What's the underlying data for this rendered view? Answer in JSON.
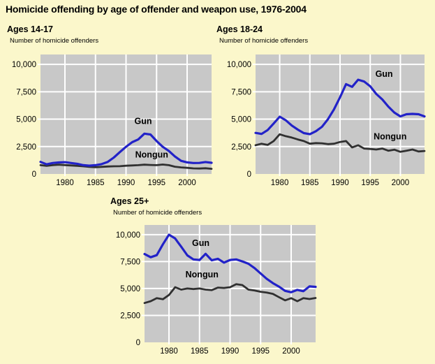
{
  "page": {
    "title": "Homicide offending by age of offender and weapon use, 1976-2004",
    "background": "#FBF7CB"
  },
  "colors": {
    "gun": "#2222C8",
    "nongun": "#303030",
    "panel": "#C8C8C8",
    "grid": "#FFFFFF",
    "text": "#000000"
  },
  "chart_data": [
    {
      "type": "line",
      "title": "Ages 14-17",
      "ylabel": "Number of homicide offenders",
      "xlim": [
        1976,
        2004
      ],
      "ylim": [
        0,
        10900
      ],
      "grid": true,
      "legend": "inline-labels",
      "x": [
        1976,
        1977,
        1978,
        1979,
        1980,
        1981,
        1982,
        1983,
        1984,
        1985,
        1986,
        1987,
        1988,
        1989,
        1990,
        1991,
        1992,
        1993,
        1994,
        1995,
        1996,
        1997,
        1998,
        1999,
        2000,
        2001,
        2002,
        2003,
        2004
      ],
      "xticks": {
        "values": [
          1980,
          1985,
          1990,
          1995,
          2000
        ],
        "labels": [
          "1980",
          "1985",
          "1990",
          "1995",
          "2000"
        ]
      },
      "yticks": {
        "values": [
          0,
          2500,
          5000,
          7500,
          10000
        ],
        "labels": [
          "0",
          "2,500",
          "5,000",
          "7,500",
          "10,000"
        ]
      },
      "series": [
        {
          "name": "Nongun",
          "color_key": "nongun",
          "values": [
            800,
            740,
            800,
            850,
            810,
            780,
            740,
            700,
            650,
            610,
            650,
            680,
            700,
            710,
            750,
            780,
            800,
            850,
            820,
            800,
            860,
            800,
            660,
            600,
            560,
            510,
            500,
            520,
            470
          ],
          "label": {
            "x": 1994.2,
            "y": 1500
          }
        },
        {
          "name": "Gun",
          "color_key": "gun",
          "values": [
            1100,
            880,
            1000,
            1050,
            1080,
            1000,
            930,
            800,
            760,
            800,
            900,
            1100,
            1500,
            2000,
            2480,
            2900,
            3150,
            3680,
            3600,
            3000,
            2480,
            2100,
            1600,
            1200,
            1060,
            1000,
            1010,
            1090,
            1020
          ],
          "label": {
            "x": 1992.8,
            "y": 4550
          }
        }
      ]
    },
    {
      "type": "line",
      "title": "Ages 18-24",
      "ylabel": "Number of homicide offenders",
      "xlim": [
        1976,
        2004
      ],
      "ylim": [
        0,
        10900
      ],
      "grid": true,
      "legend": "inline-labels",
      "x": [
        1976,
        1977,
        1978,
        1979,
        1980,
        1981,
        1982,
        1983,
        1984,
        1985,
        1986,
        1987,
        1988,
        1989,
        1990,
        1991,
        1992,
        1993,
        1994,
        1995,
        1996,
        1997,
        1998,
        1999,
        2000,
        2001,
        2002,
        2003,
        2004
      ],
      "xticks": {
        "values": [
          1980,
          1985,
          1990,
          1995,
          2000
        ],
        "labels": [
          "1980",
          "1985",
          "1990",
          "1995",
          "2000"
        ]
      },
      "yticks": {
        "values": [
          0,
          2500,
          5000,
          7500,
          10000
        ],
        "labels": [
          "0",
          "2,500",
          "5,000",
          "7,500",
          "10,000"
        ]
      },
      "series": [
        {
          "name": "Nongun",
          "color_key": "nongun",
          "values": [
            2620,
            2760,
            2650,
            3000,
            3620,
            3450,
            3320,
            3150,
            3000,
            2760,
            2820,
            2800,
            2720,
            2760,
            2920,
            3000,
            2420,
            2620,
            2320,
            2280,
            2230,
            2320,
            2120,
            2220,
            2020,
            2120,
            2230,
            2050,
            2100
          ],
          "label": {
            "x": 1998.3,
            "y": 3150
          }
        },
        {
          "name": "Gun",
          "color_key": "gun",
          "values": [
            3750,
            3650,
            4000,
            4600,
            5230,
            4900,
            4420,
            4050,
            3730,
            3630,
            3900,
            4300,
            5000,
            5900,
            7000,
            8200,
            7950,
            8600,
            8430,
            8000,
            7300,
            6800,
            6150,
            5600,
            5250,
            5450,
            5480,
            5450,
            5250
          ],
          "label": {
            "x": 1997.3,
            "y": 8850
          }
        }
      ]
    },
    {
      "type": "line",
      "title": "Ages 25+",
      "ylabel": "Number of homicide offenders",
      "xlim": [
        1976,
        2004
      ],
      "ylim": [
        0,
        10900
      ],
      "grid": true,
      "legend": "inline-labels",
      "x": [
        1976,
        1977,
        1978,
        1979,
        1980,
        1981,
        1982,
        1983,
        1984,
        1985,
        1986,
        1987,
        1988,
        1989,
        1990,
        1991,
        1992,
        1993,
        1994,
        1995,
        1996,
        1997,
        1998,
        1999,
        2000,
        2001,
        2002,
        2003,
        2004
      ],
      "xticks": {
        "values": [
          1980,
          1985,
          1990,
          1995,
          2000
        ],
        "labels": [
          "1980",
          "1985",
          "1990",
          "1995",
          "2000"
        ]
      },
      "yticks": {
        "values": [
          0,
          2500,
          5000,
          7500,
          10000
        ],
        "labels": [
          "0",
          "2,500",
          "5,000",
          "7,500",
          "10,000"
        ]
      },
      "series": [
        {
          "name": "Nongun",
          "color_key": "nongun",
          "values": [
            3650,
            3820,
            4100,
            4000,
            4400,
            5120,
            4900,
            5000,
            4950,
            5000,
            4900,
            4850,
            5080,
            5050,
            5120,
            5400,
            5320,
            4900,
            4820,
            4700,
            4620,
            4500,
            4200,
            3900,
            4100,
            3820,
            4100,
            4020,
            4120
          ],
          "label": {
            "x": 1985.4,
            "y": 6050
          }
        },
        {
          "name": "Gun",
          "color_key": "gun",
          "values": [
            8200,
            7900,
            8100,
            9100,
            10000,
            9650,
            8880,
            8080,
            7700,
            7650,
            8220,
            7620,
            7760,
            7400,
            7650,
            7700,
            7520,
            7300,
            6900,
            6400,
            5900,
            5500,
            5180,
            4780,
            4650,
            4870,
            4750,
            5200,
            5150
          ],
          "label": {
            "x": 1985.2,
            "y": 8950
          }
        }
      ]
    }
  ]
}
